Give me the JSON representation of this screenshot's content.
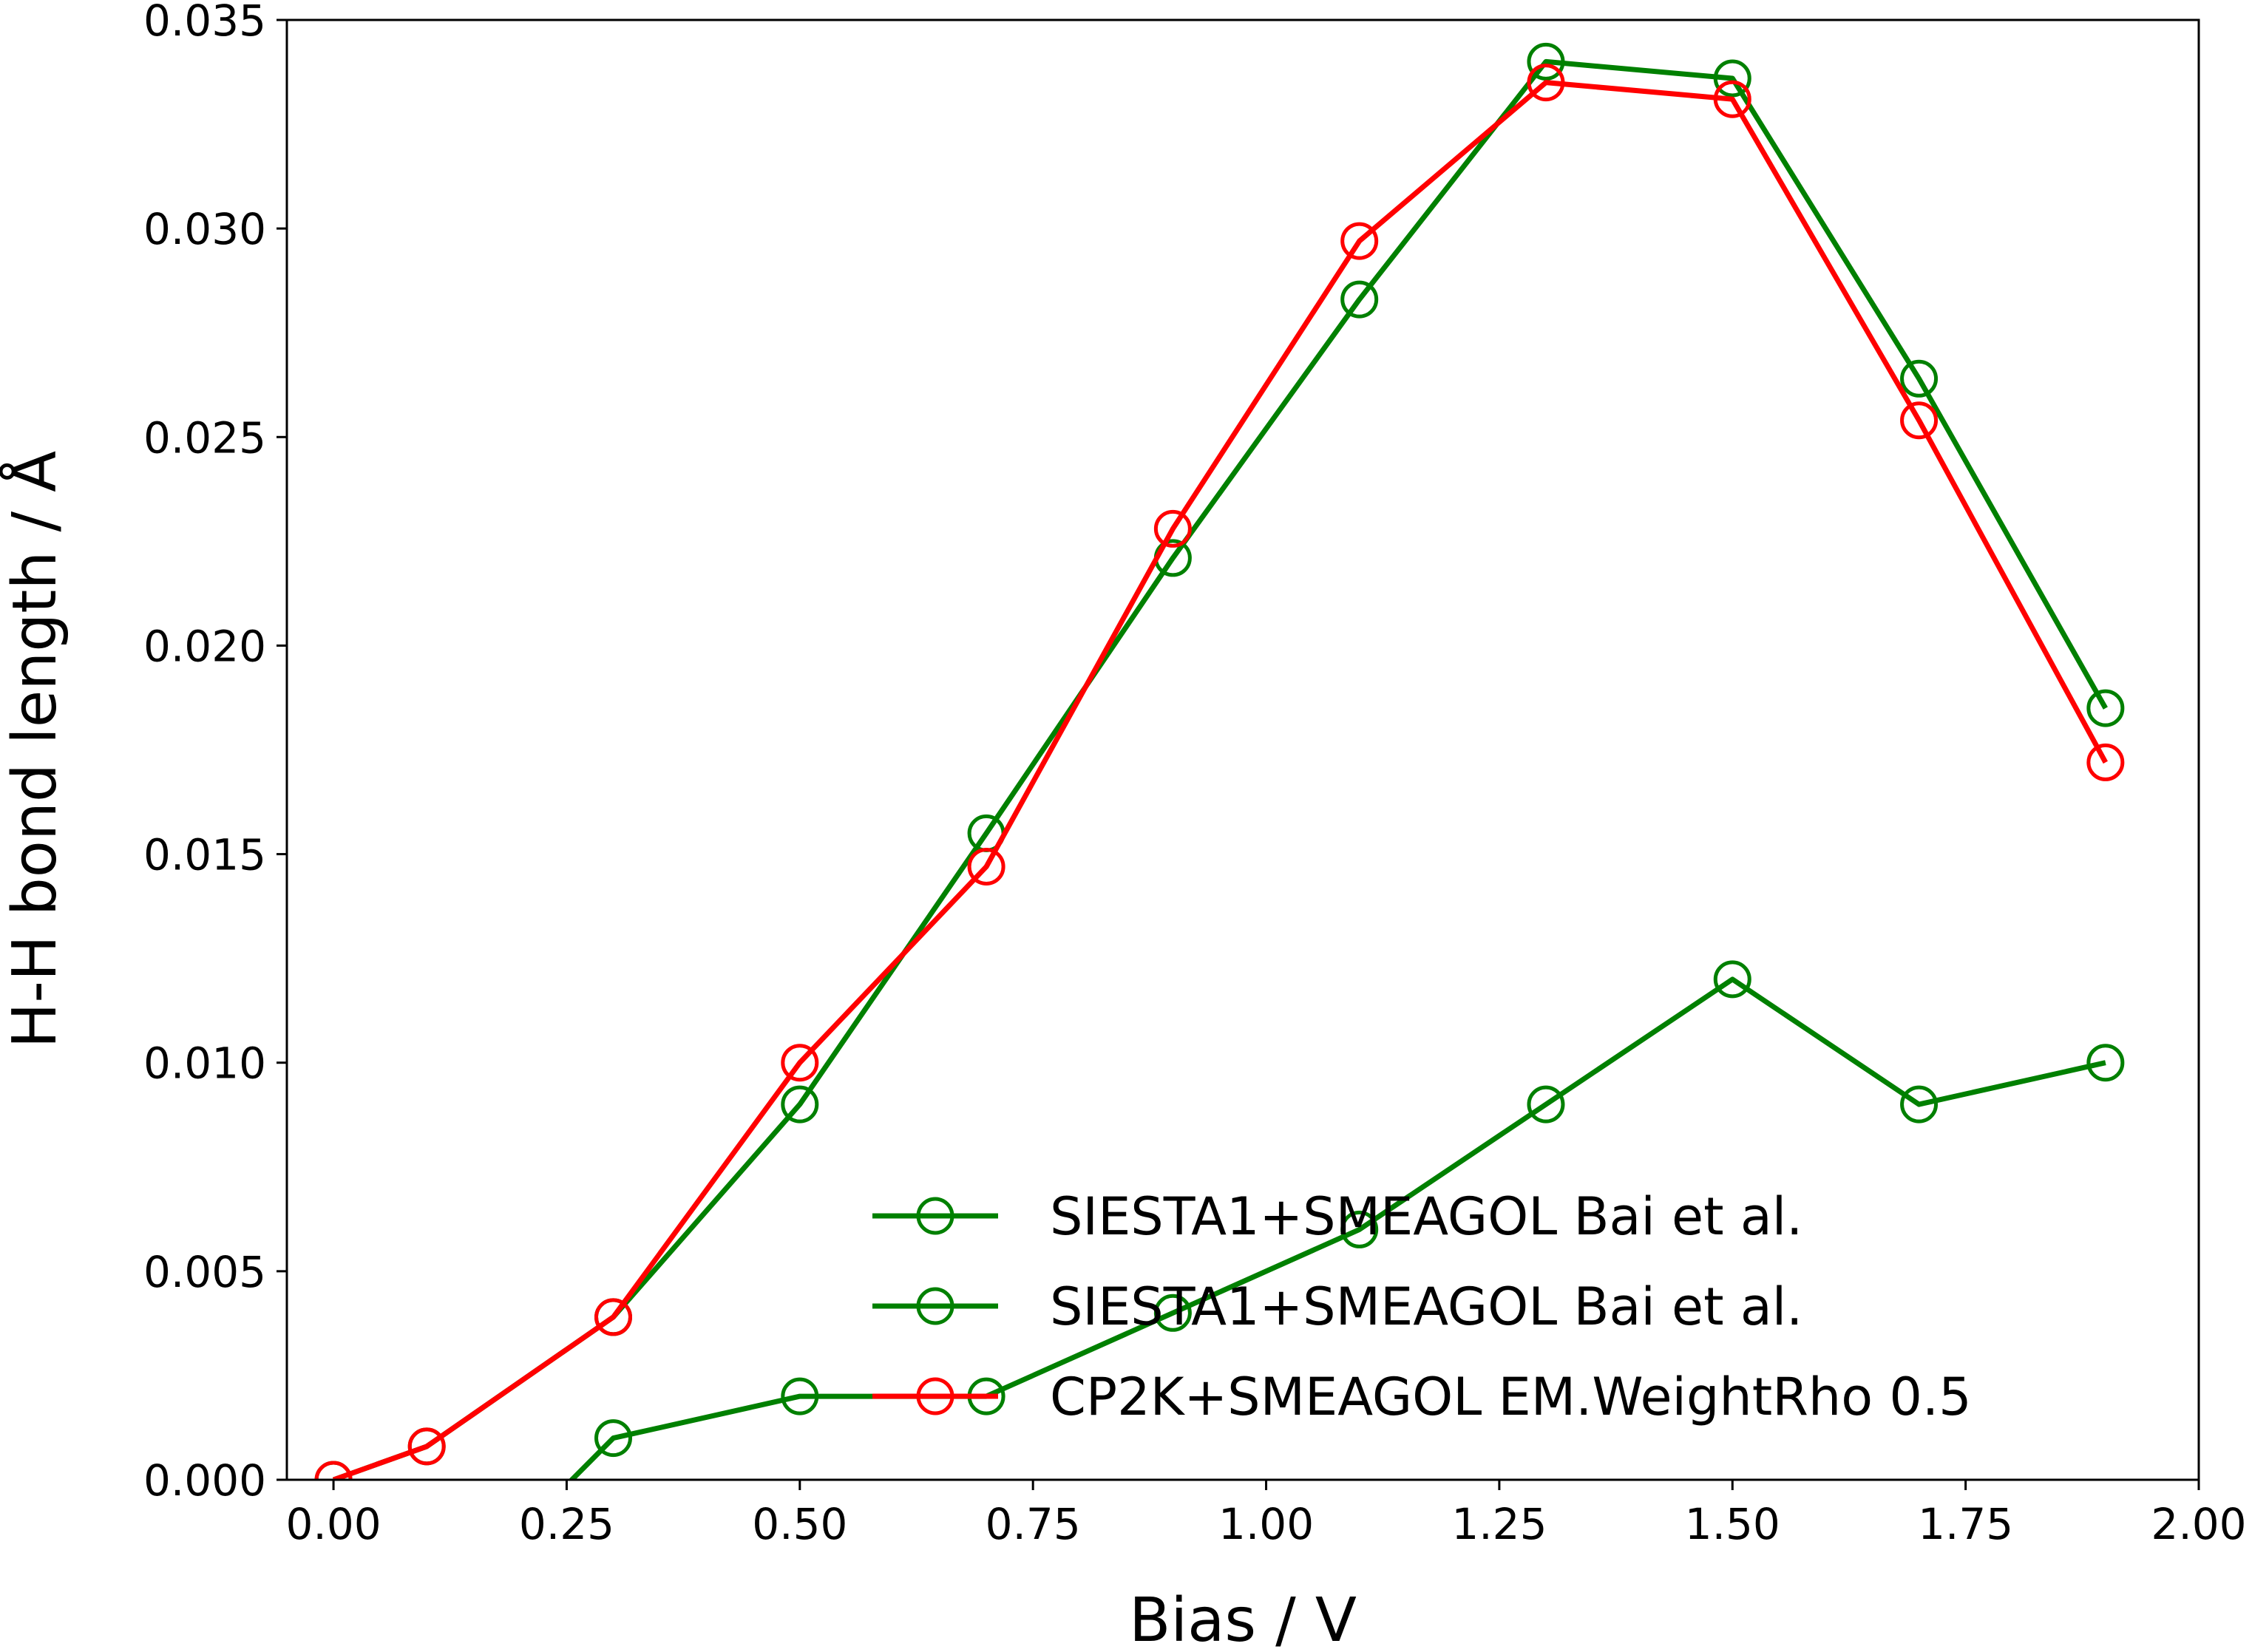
{
  "chart_data": {
    "type": "line",
    "xlabel": "Bias / V",
    "ylabel": "H-H bond length / Å",
    "xlim": [
      -0.05,
      2.0
    ],
    "ylim": [
      0.0,
      0.035
    ],
    "xticks": [
      "0.00",
      "0.25",
      "0.50",
      "0.75",
      "1.00",
      "1.25",
      "1.50",
      "1.75",
      "2.00"
    ],
    "yticks": [
      "0.000",
      "0.005",
      "0.010",
      "0.015",
      "0.020",
      "0.025",
      "0.030",
      "0.035"
    ],
    "grid": false,
    "legend_position": "lower-right",
    "series": [
      {
        "name": "SIESTA1+SMEAGOL Bai et al.",
        "color": "#008000",
        "marker": "open-circle",
        "x": [
          0.0,
          0.1,
          0.3,
          0.5,
          0.7,
          0.9,
          1.1,
          1.3,
          1.5,
          1.7,
          1.9
        ],
        "y": [
          0.0,
          0.0008,
          0.0039,
          0.009,
          0.0155,
          0.0221,
          0.0283,
          0.034,
          0.0336,
          0.0264,
          0.0185
        ]
      },
      {
        "name": "SIESTA1+SMEAGOL Bai et al.",
        "color": "#008000",
        "marker": "open-circle",
        "x": [
          0.1,
          0.3,
          0.5,
          0.7,
          0.9,
          1.1,
          1.3,
          1.5,
          1.7,
          1.9
        ],
        "y": [
          -0.0035,
          0.001,
          0.002,
          0.002,
          0.004,
          0.006,
          0.009,
          0.012,
          0.009,
          0.01
        ]
      },
      {
        "name": "CP2K+SMEAGOL EM.WeightRho 0.5",
        "color": "#ff0000",
        "marker": "open-circle",
        "x": [
          0.0,
          0.1,
          0.3,
          0.5,
          0.7,
          0.9,
          1.1,
          1.3,
          1.5,
          1.7,
          1.9
        ],
        "y": [
          0.0,
          0.0008,
          0.0039,
          0.01,
          0.0147,
          0.0228,
          0.0297,
          0.0335,
          0.0331,
          0.0254,
          0.0172
        ]
      }
    ]
  }
}
